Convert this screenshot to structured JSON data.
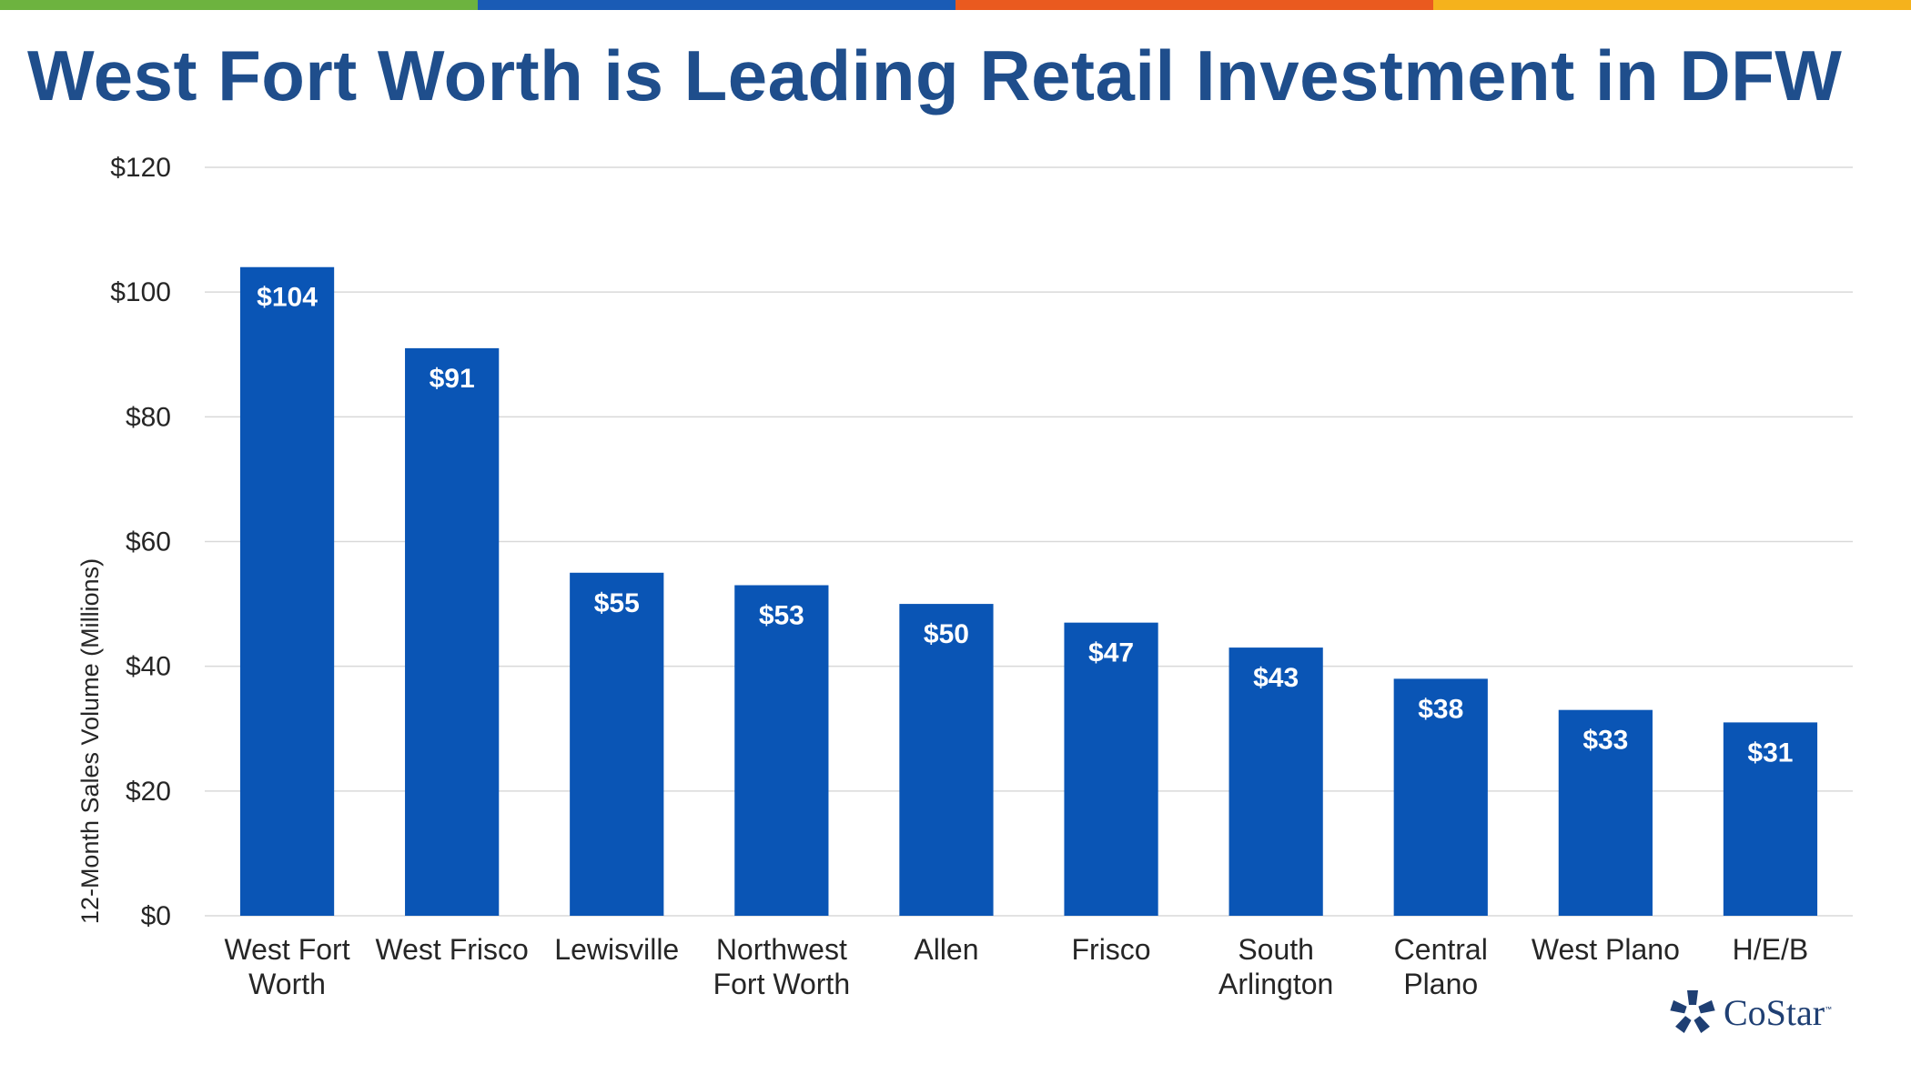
{
  "colors": {
    "stripe": [
      "#6db33f",
      "#1a5bb5",
      "#ea5a1f",
      "#f5b21c"
    ],
    "title": "#1f4e8c",
    "bar": "#0a55b5",
    "grid": "#d9d9d9",
    "axis_text": "#262626",
    "logo_blue": "#1f3f73"
  },
  "title": "West Fort Worth is Leading Retail Investment in DFW",
  "logo": {
    "text": "CoStar",
    "tm": "™",
    "icon": "costar-star-icon"
  },
  "chart_data": {
    "type": "bar",
    "categories": [
      "West Fort Worth",
      "West Frisco",
      "Lewisville",
      "Northwest Fort Worth",
      "Allen",
      "Frisco",
      "South Arlington",
      "Central Plano",
      "West Plano",
      "H/E/B"
    ],
    "category_lines": [
      [
        "West Fort",
        "Worth"
      ],
      [
        "West Frisco"
      ],
      [
        "Lewisville"
      ],
      [
        "Northwest",
        "Fort Worth"
      ],
      [
        "Allen"
      ],
      [
        "Frisco"
      ],
      [
        "South",
        "Arlington"
      ],
      [
        "Central",
        "Plano"
      ],
      [
        "West Plano"
      ],
      [
        "H/E/B"
      ]
    ],
    "values": [
      104,
      91,
      55,
      53,
      50,
      47,
      43,
      38,
      33,
      31
    ],
    "data_labels": [
      "$104",
      "$91",
      "$55",
      "$53",
      "$50",
      "$47",
      "$43",
      "$38",
      "$33",
      "$31"
    ],
    "ylabel": "12-Month Sales Volume (Millions)",
    "ylim": [
      0,
      120
    ],
    "yticks": [
      0,
      20,
      40,
      60,
      80,
      100,
      120
    ],
    "ytick_labels": [
      "$0",
      "$20",
      "$40",
      "$60",
      "$80",
      "$100",
      "$120"
    ],
    "grid": true
  }
}
